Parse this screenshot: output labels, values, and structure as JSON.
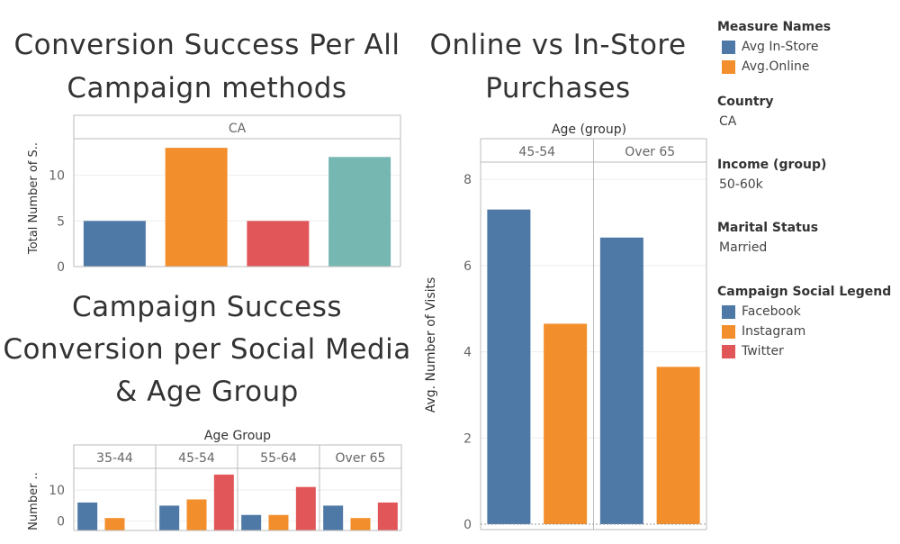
{
  "titles": {
    "conversion": "Conversion Success Per All Campaign methods",
    "online": "Online vs In-Store Purchases",
    "campaign": "Campaign Success Conversion per Social Media & Age Group"
  },
  "sidebar": {
    "measure_names_header": "Measure Names",
    "measure_items": [
      {
        "label": "Avg In-Store",
        "color": "#4e79a7"
      },
      {
        "label": "Avg.Online",
        "color": "#f28e2b"
      }
    ],
    "country_header": "Country",
    "country_value": "CA",
    "income_header": "Income (group)",
    "income_value": "50-60k",
    "marital_header": "Marital Status",
    "marital_value": "Married",
    "social_header": "Campaign Social Legend",
    "social_items": [
      {
        "label": "Facebook",
        "color": "#4e79a7"
      },
      {
        "label": "Instagram",
        "color": "#f28e2b"
      },
      {
        "label": "Twitter",
        "color": "#e15759"
      }
    ]
  },
  "chart_data": [
    {
      "type": "bar",
      "title": "Conversion Success Per All Campaign methods",
      "panel": "CA",
      "categories": [
        "",
        "",
        "",
        ""
      ],
      "values": [
        5,
        13,
        5,
        12
      ],
      "colors": [
        "#4e79a7",
        "#f28e2b",
        "#e15759",
        "#76b7b2"
      ],
      "ylabel": "Total Number of S..",
      "yticks": [
        0,
        5,
        10
      ],
      "ylim": [
        0,
        14
      ]
    },
    {
      "type": "bar",
      "title": "Online vs In-Store Purchases",
      "facet_label": "Age (group)",
      "facets": [
        "45-54",
        "Over 65"
      ],
      "series": [
        {
          "name": "Avg In-Store",
          "color": "#4e79a7",
          "values": [
            7.3,
            6.65
          ]
        },
        {
          "name": "Avg.Online",
          "color": "#f28e2b",
          "values": [
            4.65,
            3.65
          ]
        }
      ],
      "ylabel": "Avg. Number of Visits",
      "yticks": [
        0,
        2,
        4,
        6,
        8
      ],
      "ylim": [
        0,
        8.4
      ]
    },
    {
      "type": "bar",
      "title": "Campaign Success Conversion per Social Media & Age Group",
      "facet_label": "Age Group",
      "facets": [
        "35-44",
        "45-54",
        "55-64",
        "Over 65"
      ],
      "series": [
        {
          "name": "Facebook",
          "color": "#4e79a7",
          "values": [
            6,
            5,
            2,
            5
          ]
        },
        {
          "name": "Instagram",
          "color": "#f28e2b",
          "values": [
            1,
            7,
            2,
            1
          ]
        },
        {
          "name": "Twitter",
          "color": "#e15759",
          "values": [
            0,
            15,
            11,
            6
          ]
        }
      ],
      "ylabel": "Number ..",
      "yticks": [
        0,
        10
      ],
      "ylim": [
        -3,
        17
      ]
    }
  ]
}
